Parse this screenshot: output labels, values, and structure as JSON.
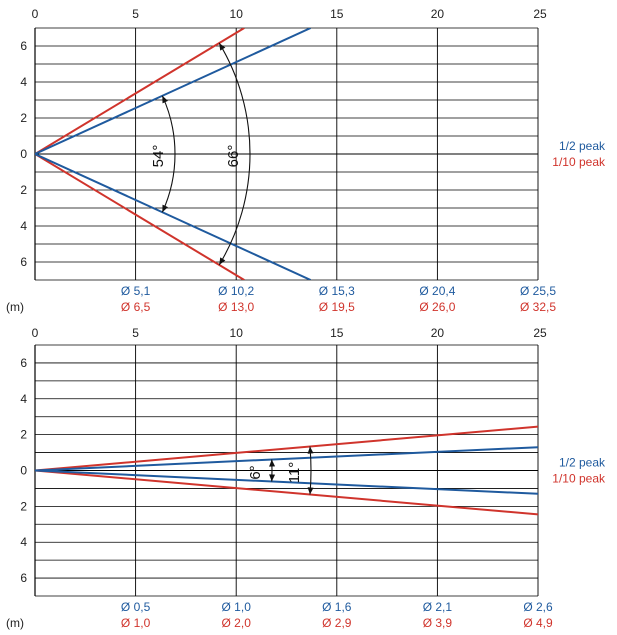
{
  "colors": {
    "half_peak": "#1f5a9e",
    "tenth_peak": "#d0342c",
    "grid": "#000000",
    "text": "#222222"
  },
  "legend": {
    "half_peak": "1/2 peak",
    "tenth_peak": "1/10 peak"
  },
  "unit_label": "(m)",
  "chart_data": [
    {
      "type": "line",
      "xlim": [
        0,
        25
      ],
      "ylim": [
        -7,
        7
      ],
      "x_ticks": [
        "0",
        "5",
        "10",
        "15",
        "20",
        "25"
      ],
      "y_ticks": [
        "6",
        "4",
        "2",
        "0",
        "2",
        "4",
        "6"
      ],
      "series": [
        {
          "name": "1/2 peak",
          "angle_deg": 54,
          "angle_label": "54°",
          "x": [
            0,
            13.7
          ],
          "y_upper": [
            0,
            7
          ],
          "y_lower": [
            0,
            -7
          ]
        },
        {
          "name": "1/10 peak",
          "angle_deg": 66,
          "angle_label": "66°",
          "x": [
            0,
            10.4
          ],
          "y_upper": [
            0,
            7
          ],
          "y_lower": [
            0,
            -7
          ]
        }
      ],
      "diameters": {
        "x": [
          5,
          10,
          15,
          20,
          25
        ],
        "half_peak": [
          "Ø 5,1",
          "Ø 10,2",
          "Ø 15,3",
          "Ø 20,4",
          "Ø 25,5"
        ],
        "tenth_peak": [
          "Ø 6,5",
          "Ø 13,0",
          "Ø 19,5",
          "Ø 26,0",
          "Ø 32,5"
        ]
      }
    },
    {
      "type": "line",
      "xlim": [
        0,
        25
      ],
      "ylim": [
        -7,
        7
      ],
      "x_ticks": [
        "0",
        "5",
        "10",
        "15",
        "20",
        "25"
      ],
      "y_ticks": [
        "6",
        "4",
        "2",
        "0",
        "2",
        "4",
        "6"
      ],
      "series": [
        {
          "name": "1/2 peak",
          "angle_deg": 6,
          "angle_label": "6°",
          "x": [
            0,
            25
          ],
          "y_upper": [
            0,
            1.3
          ],
          "y_lower": [
            0,
            -1.3
          ]
        },
        {
          "name": "1/10 peak",
          "angle_deg": 11,
          "angle_label": "11°",
          "x": [
            0,
            25
          ],
          "y_upper": [
            0,
            2.45
          ],
          "y_lower": [
            0,
            -2.45
          ]
        }
      ],
      "diameters": {
        "x": [
          5,
          10,
          15,
          20,
          25
        ],
        "half_peak": [
          "Ø 0,5",
          "Ø 1,0",
          "Ø 1,6",
          "Ø 2,1",
          "Ø 2,6"
        ],
        "tenth_peak": [
          "Ø 1,0",
          "Ø 2,0",
          "Ø 2,9",
          "Ø 3,9",
          "Ø 4,9"
        ]
      }
    }
  ]
}
